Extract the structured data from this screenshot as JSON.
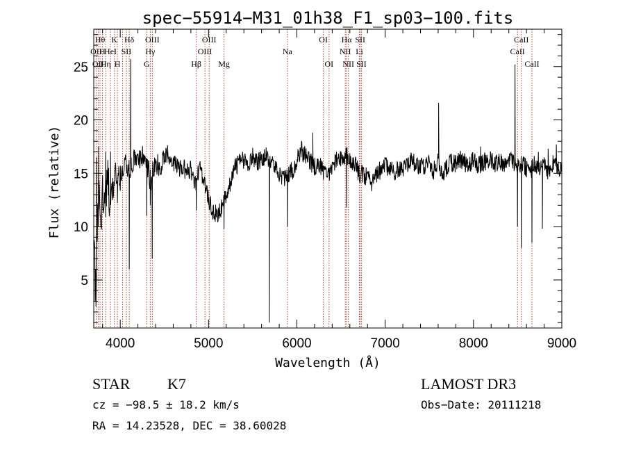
{
  "chart_data": {
    "type": "line",
    "title": "spec−55914−M31_01h38_F1_sp03−100.fits",
    "xlabel": "Wavelength (Å)",
    "ylabel": "Flux (relative)",
    "xlim": [
      3700,
      9000
    ],
    "ylim": [
      0.5,
      28.5
    ],
    "xticks": [
      4000,
      5000,
      6000,
      7000,
      8000,
      9000
    ],
    "yticks": [
      5,
      10,
      15,
      20,
      25
    ],
    "series": [
      {
        "name": "spectrum",
        "anchors": [
          [
            3700,
            8.0
          ],
          [
            3720,
            4.0
          ],
          [
            3740,
            10.5
          ],
          [
            3760,
            13.5
          ],
          [
            3780,
            11.0
          ],
          [
            3800,
            13.8
          ],
          [
            3830,
            11.5
          ],
          [
            3860,
            14.0
          ],
          [
            3900,
            12.8
          ],
          [
            3950,
            15.0
          ],
          [
            4000,
            14.5
          ],
          [
            4050,
            16.0
          ],
          [
            4100,
            15.5
          ],
          [
            4150,
            16.5
          ],
          [
            4200,
            16.0
          ],
          [
            4250,
            16.5
          ],
          [
            4300,
            15.6
          ],
          [
            4350,
            14.3
          ],
          [
            4400,
            16.2
          ],
          [
            4450,
            15.4
          ],
          [
            4500,
            16.6
          ],
          [
            4550,
            16.8
          ],
          [
            4600,
            16.0
          ],
          [
            4650,
            15.5
          ],
          [
            4700,
            15.6
          ],
          [
            4750,
            15.2
          ],
          [
            4800,
            15.4
          ],
          [
            4850,
            14.0
          ],
          [
            4900,
            15.5
          ],
          [
            4950,
            14.0
          ],
          [
            5000,
            12.5
          ],
          [
            5050,
            11.5
          ],
          [
            5100,
            11.2
          ],
          [
            5150,
            11.8
          ],
          [
            5200,
            13.0
          ],
          [
            5250,
            14.2
          ],
          [
            5300,
            15.6
          ],
          [
            5350,
            16.0
          ],
          [
            5400,
            16.3
          ],
          [
            5450,
            15.8
          ],
          [
            5500,
            16.5
          ],
          [
            5550,
            15.9
          ],
          [
            5600,
            16.4
          ],
          [
            5650,
            16.7
          ],
          [
            5700,
            16.2
          ],
          [
            5750,
            15.7
          ],
          [
            5800,
            15.0
          ],
          [
            5850,
            14.5
          ],
          [
            5900,
            14.8
          ],
          [
            5950,
            15.3
          ],
          [
            6000,
            16.2
          ],
          [
            6050,
            17.2
          ],
          [
            6100,
            16.5
          ],
          [
            6150,
            16.1
          ],
          [
            6200,
            15.6
          ],
          [
            6250,
            15.9
          ],
          [
            6300,
            15.2
          ],
          [
            6350,
            14.8
          ],
          [
            6400,
            15.6
          ],
          [
            6450,
            16.2
          ],
          [
            6500,
            16.5
          ],
          [
            6550,
            16.7
          ],
          [
            6600,
            16.3
          ],
          [
            6650,
            15.9
          ],
          [
            6700,
            15.1
          ],
          [
            6750,
            14.8
          ],
          [
            6800,
            14.7
          ],
          [
            6850,
            14.2
          ],
          [
            6900,
            14.8
          ],
          [
            6950,
            15.4
          ],
          [
            7000,
            16.0
          ],
          [
            7050,
            15.3
          ],
          [
            7100,
            15.1
          ],
          [
            7150,
            15.6
          ],
          [
            7200,
            15.3
          ],
          [
            7250,
            15.9
          ],
          [
            7300,
            16.2
          ],
          [
            7350,
            15.7
          ],
          [
            7400,
            15.5
          ],
          [
            7450,
            15.8
          ],
          [
            7500,
            16.1
          ],
          [
            7550,
            15.2
          ],
          [
            7600,
            16.2
          ],
          [
            7650,
            14.8
          ],
          [
            7700,
            15.7
          ],
          [
            7750,
            16.0
          ],
          [
            7800,
            15.8
          ],
          [
            7850,
            16.3
          ],
          [
            7900,
            16.0
          ],
          [
            7950,
            15.8
          ],
          [
            8000,
            16.2
          ],
          [
            8050,
            15.7
          ],
          [
            8100,
            16.0
          ],
          [
            8150,
            16.1
          ],
          [
            8200,
            16.4
          ],
          [
            8250,
            15.8
          ],
          [
            8300,
            16.0
          ],
          [
            8350,
            15.8
          ],
          [
            8400,
            16.0
          ],
          [
            8450,
            16.2
          ],
          [
            8500,
            15.6
          ],
          [
            8550,
            16.0
          ],
          [
            8600,
            15.4
          ],
          [
            8650,
            15.2
          ],
          [
            8700,
            16.0
          ],
          [
            8750,
            15.5
          ],
          [
            8800,
            15.8
          ],
          [
            8850,
            15.2
          ],
          [
            8900,
            15.8
          ],
          [
            8950,
            15.4
          ],
          [
            9000,
            15.2
          ]
        ],
        "features": [
          [
            3725,
            2.5
          ],
          [
            3733,
            16.5
          ],
          [
            3755,
            17.5
          ],
          [
            3835,
            17.0
          ],
          [
            3890,
            17.0
          ],
          [
            3934,
            13.8
          ],
          [
            3968,
            12.2
          ],
          [
            4102,
            6.0
          ],
          [
            4118,
            25.7
          ],
          [
            4300,
            11.0
          ],
          [
            4340,
            12.0
          ],
          [
            4362,
            7.0
          ],
          [
            4861,
            11.5
          ],
          [
            5175,
            9.8
          ],
          [
            5689,
            1.0
          ],
          [
            5893,
            10.0
          ],
          [
            6180,
            18.8
          ],
          [
            6563,
            11.8
          ],
          [
            7605,
            21.6
          ],
          [
            8080,
            17.5
          ],
          [
            8470,
            25.2
          ],
          [
            8498,
            10.0
          ],
          [
            8542,
            8.0
          ],
          [
            8662,
            8.5
          ],
          [
            8735,
            17.0
          ],
          [
            8780,
            9.8
          ],
          [
            8845,
            17.3
          ],
          [
            8938,
            17.7
          ],
          [
            9000,
            7.8
          ]
        ],
        "noise": 0.9
      }
    ],
    "line_markers": {
      "wavelengths": [
        3727,
        3750,
        3771,
        3798,
        3835,
        3889,
        3934,
        3968,
        4026,
        4069,
        4102,
        4300,
        4340,
        4363,
        4861,
        4959,
        5007,
        5175,
        5893,
        6300,
        6364,
        6548,
        6563,
        6583,
        6708,
        6717,
        6731,
        8498,
        8542,
        8662
      ],
      "labels": [
        {
          "x": 3727,
          "row": 2,
          "text": "OII"
        },
        {
          "x": 3750,
          "row": 3,
          "text": "OII"
        },
        {
          "x": 3771,
          "row": 1,
          "text": "Hθ"
        },
        {
          "x": 3798,
          "row": 2,
          "text": "H"
        },
        {
          "x": 3835,
          "row": 3,
          "text": "Hη"
        },
        {
          "x": 3889,
          "row": 2,
          "text": "HeI"
        },
        {
          "x": 3934,
          "row": 1,
          "text": "K"
        },
        {
          "x": 3968,
          "row": 3,
          "text": "H"
        },
        {
          "x": 4069,
          "row": 2,
          "text": "SII"
        },
        {
          "x": 4102,
          "row": 1,
          "text": "Hδ"
        },
        {
          "x": 4300,
          "row": 3,
          "text": "G"
        },
        {
          "x": 4340,
          "row": 2,
          "text": "Hγ"
        },
        {
          "x": 4363,
          "row": 1,
          "text": "OIII"
        },
        {
          "x": 4861,
          "row": 3,
          "text": "Hβ"
        },
        {
          "x": 4959,
          "row": 2,
          "text": "OIII"
        },
        {
          "x": 5007,
          "row": 1,
          "text": "OIII"
        },
        {
          "x": 5175,
          "row": 3,
          "text": "Mg"
        },
        {
          "x": 5893,
          "row": 2,
          "text": "Na"
        },
        {
          "x": 6300,
          "row": 1,
          "text": "OI"
        },
        {
          "x": 6364,
          "row": 3,
          "text": "OI"
        },
        {
          "x": 6548,
          "row": 2,
          "text": "NII"
        },
        {
          "x": 6563,
          "row": 1,
          "text": "Hα"
        },
        {
          "x": 6583,
          "row": 3,
          "text": "NII"
        },
        {
          "x": 6708,
          "row": 2,
          "text": "Li"
        },
        {
          "x": 6717,
          "row": 1,
          "text": "SII"
        },
        {
          "x": 6731,
          "row": 3,
          "text": "SII"
        },
        {
          "x": 8498,
          "row": 2,
          "text": "CaII"
        },
        {
          "x": 8542,
          "row": 1,
          "text": "CaII"
        },
        {
          "x": 8662,
          "row": 3,
          "text": "CaII"
        }
      ],
      "color": "#c0392b"
    }
  },
  "info": {
    "object_class": "STAR",
    "subclass": "K7",
    "survey": "LAMOST DR3",
    "cz": "cz = −98.5 ± 18.2 km/s",
    "obs_date": "Obs−Date: 20111218",
    "radec": "RA =  14.23528, DEC =  38.60028"
  }
}
